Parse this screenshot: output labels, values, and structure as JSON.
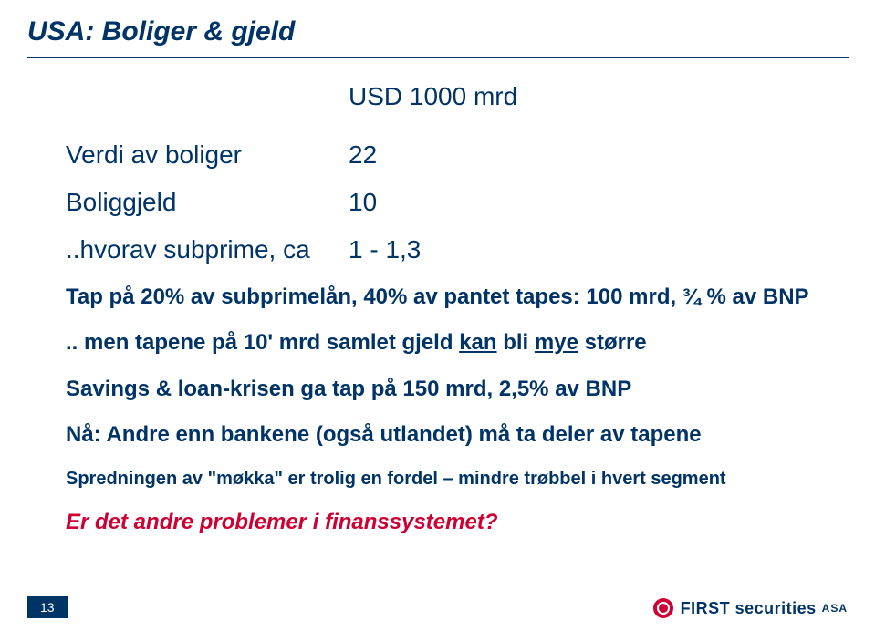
{
  "title": "USA: Boliger & gjeld",
  "table": {
    "header": "USD 1000 mrd",
    "rows": [
      {
        "label": "Verdi av boliger",
        "value": "22"
      },
      {
        "label": "Boliggjeld",
        "value": "10"
      },
      {
        "label": "..hvorav subprime, ca",
        "value": "1 - 1,3"
      }
    ]
  },
  "body": {
    "line1": "Tap på 20% av subprimelån, 40% av pantet tapes: 100 mrd, ¾ % av BNP",
    "line2_a": ".. men tapene på 10' mrd samlet gjeld ",
    "line2_u1": "kan",
    "line2_b": " bli ",
    "line2_u2": "mye",
    "line2_c": " større",
    "line3": "Savings & loan-krisen ga tap på 150 mrd, 2,5% av BNP",
    "line4": "Nå: Andre enn bankene (også utlandet) må ta deler av tapene",
    "line5": "Spredningen av \"møkka\" er trolig en fordel – mindre trøbbel i hvert segment",
    "question": "Er det andre problemer i finanssystemet?"
  },
  "footer": {
    "page": "13",
    "logo_main": "FIRST securities",
    "logo_suffix": "ASA"
  },
  "colors": {
    "primary": "#003366",
    "accent": "#cc0033",
    "background": "#ffffff"
  }
}
